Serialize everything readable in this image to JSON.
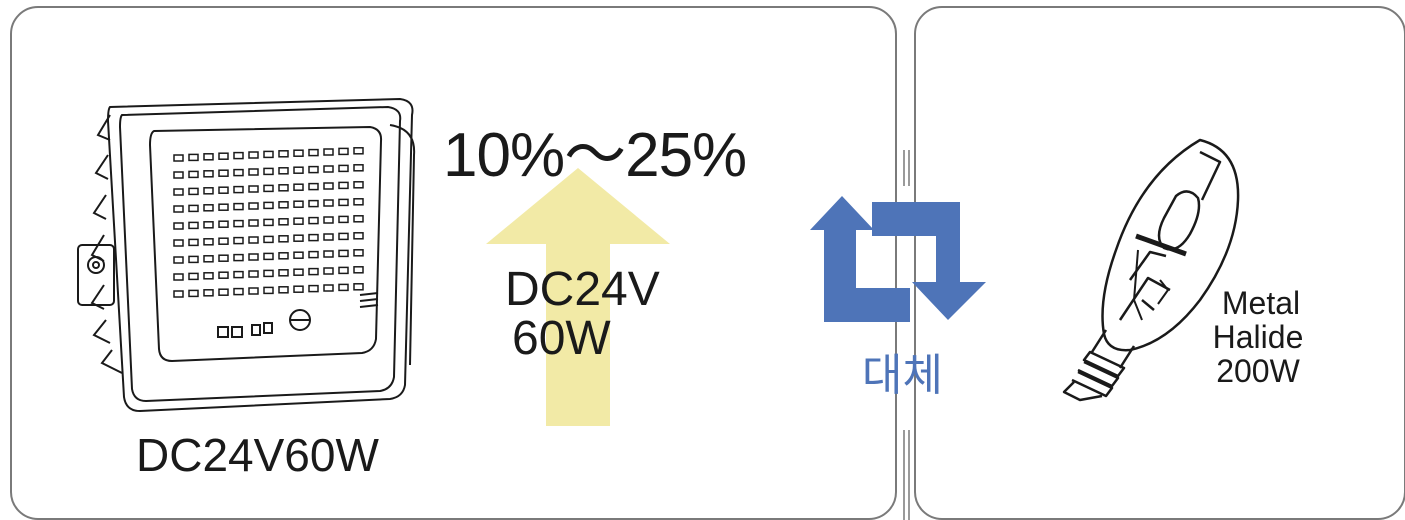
{
  "left": {
    "efficiency": "10%～25%",
    "arrow_voltage": "DC24V",
    "arrow_wattage": "60W",
    "led_caption": "DC24V60W"
  },
  "center": {
    "replace_label": "대체",
    "icon": "swap-arrows-icon",
    "color": "#4e74b8"
  },
  "right": {
    "bulb_line1": "Metal",
    "bulb_line2": "Halide",
    "bulb_line3": "200W"
  },
  "colors": {
    "arrow_fill": "#f2eaa6",
    "border": "#7a7a7a",
    "accent": "#4e74b8"
  }
}
